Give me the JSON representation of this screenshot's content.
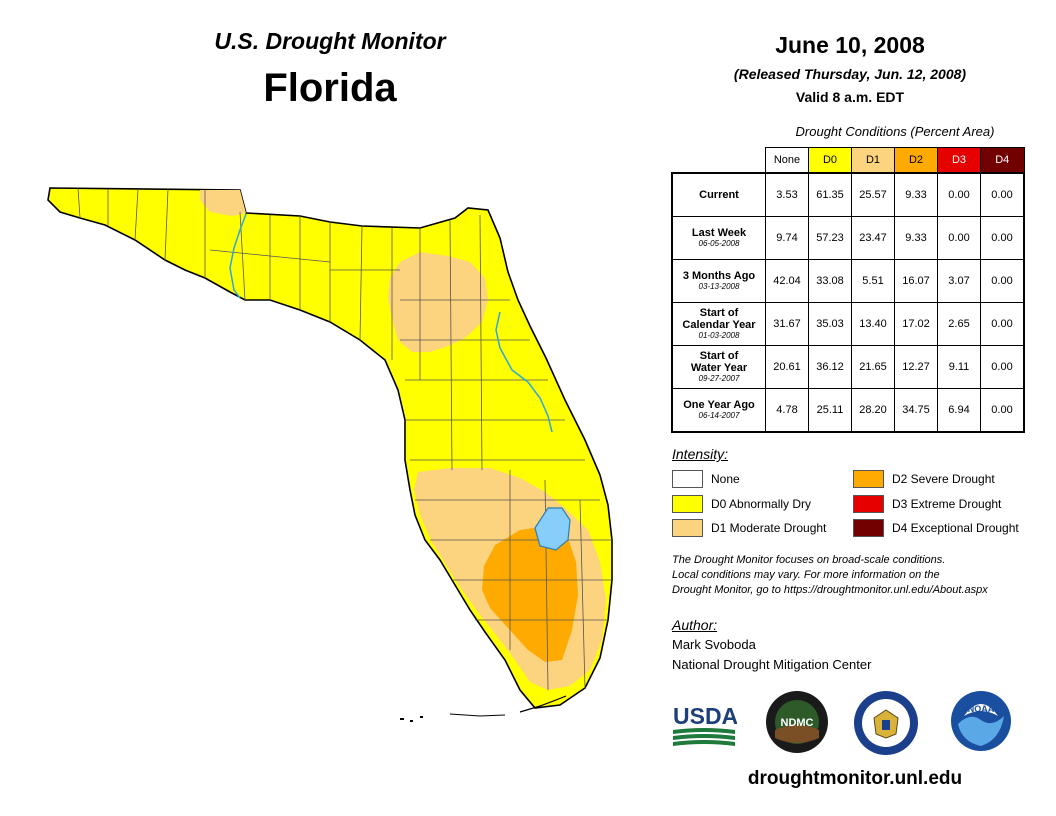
{
  "header": {
    "subtitle": "U.S. Drought Monitor",
    "state": "Florida",
    "date": "June 10, 2008",
    "released": "(Released Thursday, Jun. 12, 2008)",
    "valid": "Valid 8 a.m. EDT"
  },
  "table": {
    "title": "Drought Conditions (Percent Area)",
    "columns": [
      "None",
      "D0",
      "D1",
      "D2",
      "D3",
      "D4"
    ],
    "rows": [
      {
        "label": "Current",
        "label2": "",
        "date": "",
        "values": [
          "3.53",
          "61.35",
          "25.57",
          "9.33",
          "0.00",
          "0.00"
        ]
      },
      {
        "label": "Last Week",
        "label2": "",
        "date": "06-05-2008",
        "values": [
          "9.74",
          "57.23",
          "23.47",
          "9.33",
          "0.00",
          "0.00"
        ]
      },
      {
        "label": "3 Months Ago",
        "label2": "",
        "date": "03-13-2008",
        "values": [
          "42.04",
          "33.08",
          "5.51",
          "16.07",
          "3.07",
          "0.00"
        ]
      },
      {
        "label": "Start of",
        "label2": "Calendar Year",
        "date": "01-03-2008",
        "values": [
          "31.67",
          "35.03",
          "13.40",
          "17.02",
          "2.65",
          "0.00"
        ]
      },
      {
        "label": "Start of",
        "label2": "Water Year",
        "date": "09-27-2007",
        "values": [
          "20.61",
          "36.12",
          "21.65",
          "12.27",
          "9.11",
          "0.00"
        ]
      },
      {
        "label": "One Year Ago",
        "label2": "",
        "date": "06-14-2007",
        "values": [
          "4.78",
          "25.11",
          "28.20",
          "34.75",
          "6.94",
          "0.00"
        ]
      }
    ]
  },
  "legend": {
    "title": "Intensity:",
    "items": [
      {
        "label": "None",
        "color": "#ffffff"
      },
      {
        "label": "D0 Abnormally Dry",
        "color": "#ffff00"
      },
      {
        "label": "D1 Moderate Drought",
        "color": "#fcd37f"
      },
      {
        "label": "D2 Severe Drought",
        "color": "#ffaa00"
      },
      {
        "label": "D3 Extreme Drought",
        "color": "#e60000"
      },
      {
        "label": "D4 Exceptional Drought",
        "color": "#730000"
      }
    ]
  },
  "note": {
    "line1": "The Drought Monitor focuses on broad-scale conditions.",
    "line2": "Local conditions may vary. For more information on the",
    "line3": "Drought Monitor, go to https://droughtmonitor.unl.edu/About.aspx"
  },
  "author": {
    "title": "Author:",
    "name": "Mark Svoboda",
    "org": "National Drought Mitigation Center"
  },
  "logos": {
    "usda": "USDA",
    "ndmc": "NDMC",
    "noaa": "NOAA"
  },
  "website": "droughtmonitor.unl.edu",
  "colors": {
    "d0": "#ffff00",
    "d1": "#fcd37f",
    "d2": "#ffaa00",
    "water": "#87cefa",
    "river": "#2ba6de"
  }
}
